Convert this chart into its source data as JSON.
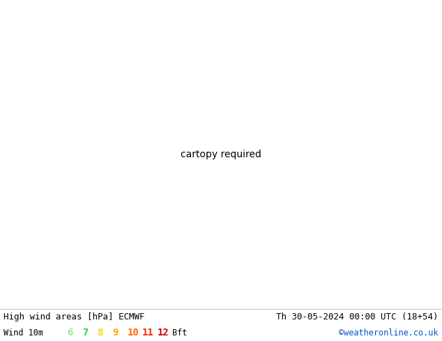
{
  "title_left": "High wind areas [hPa] ECMWF",
  "title_right": "Th 30-05-2024 00:00 UTC (18+54)",
  "label_wind": "Wind 10m",
  "bft_values": [
    "6",
    "7",
    "8",
    "9",
    "10",
    "11",
    "12"
  ],
  "bft_colors": [
    "#90ee90",
    "#32cd32",
    "#ffd700",
    "#ffa500",
    "#ff6600",
    "#ff2200",
    "#cc0000"
  ],
  "bft_label": "Bft",
  "copyright": "©weatheronline.co.uk",
  "bg_color": "#ffffff",
  "land_color": "#c8edc8",
  "sea_color": "#d8d8d8",
  "font_mono": "DejaVu Sans Mono",
  "font_size_title": 9.0,
  "font_size_legend": 8.5,
  "figsize": [
    6.34,
    4.9
  ],
  "dpi": 100,
  "extent": [
    88,
    165,
    -12,
    52
  ],
  "black": "#000000",
  "blue": "#0055cc",
  "red": "#cc2200",
  "green_contour": "#009900"
}
